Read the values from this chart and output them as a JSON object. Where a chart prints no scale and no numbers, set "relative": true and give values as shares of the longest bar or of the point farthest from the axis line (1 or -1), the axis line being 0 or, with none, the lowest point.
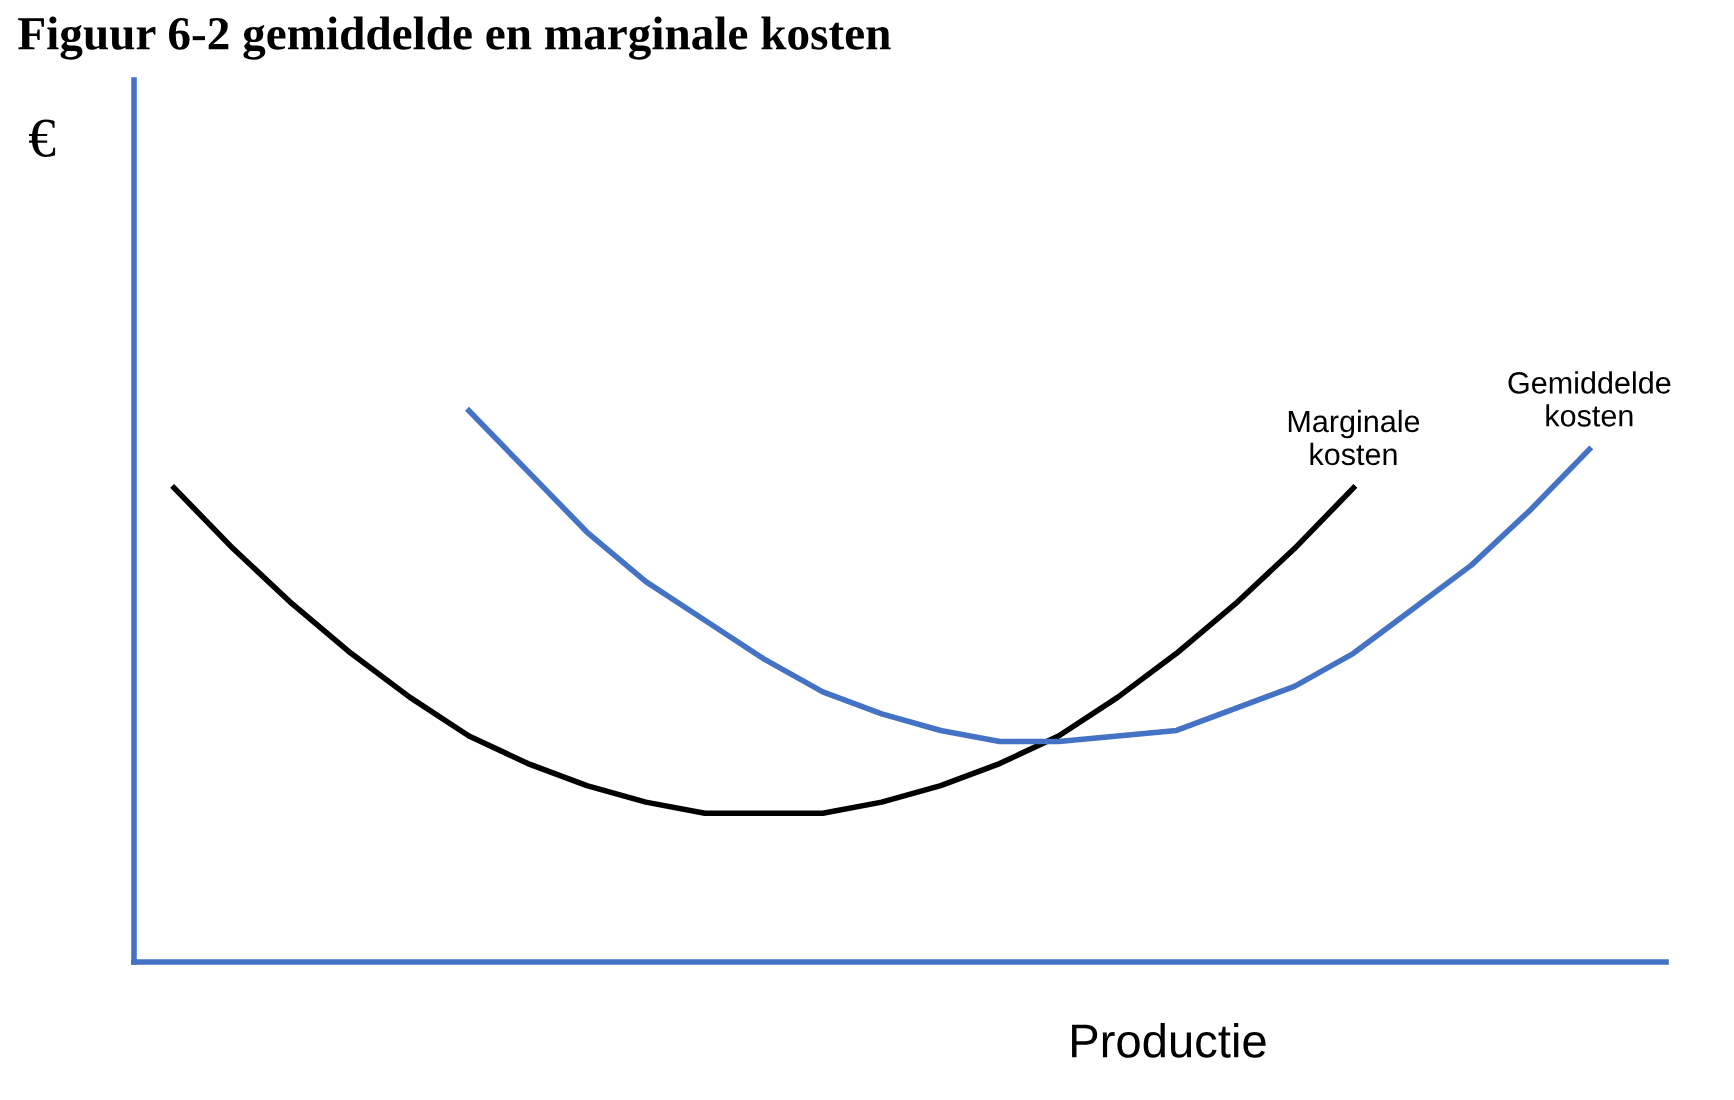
{
  "chart_data": {
    "type": "line",
    "title": "Figuur 6-2 gemiddelde en marginale kosten",
    "xlabel": "Productie",
    "ylabel": "€",
    "relative": true,
    "legend": false,
    "marker": "none",
    "line_style": "solid",
    "categories": [
      null,
      null,
      null,
      null,
      null,
      null,
      null,
      null,
      null,
      null,
      null,
      null,
      null,
      null,
      null,
      null,
      null,
      null,
      null,
      null,
      null,
      null,
      null,
      null,
      null
    ],
    "series": [
      {
        "name": "Marginale kosten",
        "color": "#000000",
        "values": [
          0.86,
          0.75,
          0.65,
          0.56,
          0.48,
          0.41,
          0.36,
          0.32,
          0.29,
          0.27,
          0.27,
          0.27,
          0.29,
          0.32,
          0.36,
          0.41,
          0.48,
          0.56,
          0.65,
          0.75,
          0.86,
          null,
          null,
          null,
          null
        ]
      },
      {
        "name": "Gemiddelde kosten",
        "color": "#4472c4",
        "values": [
          null,
          null,
          null,
          null,
          null,
          1.0,
          0.89,
          0.78,
          0.69,
          0.62,
          0.55,
          0.49,
          0.45,
          0.42,
          0.4,
          0.4,
          0.41,
          0.42,
          0.46,
          0.5,
          0.56,
          0.64,
          0.72,
          0.82,
          0.93
        ]
      }
    ]
  }
}
